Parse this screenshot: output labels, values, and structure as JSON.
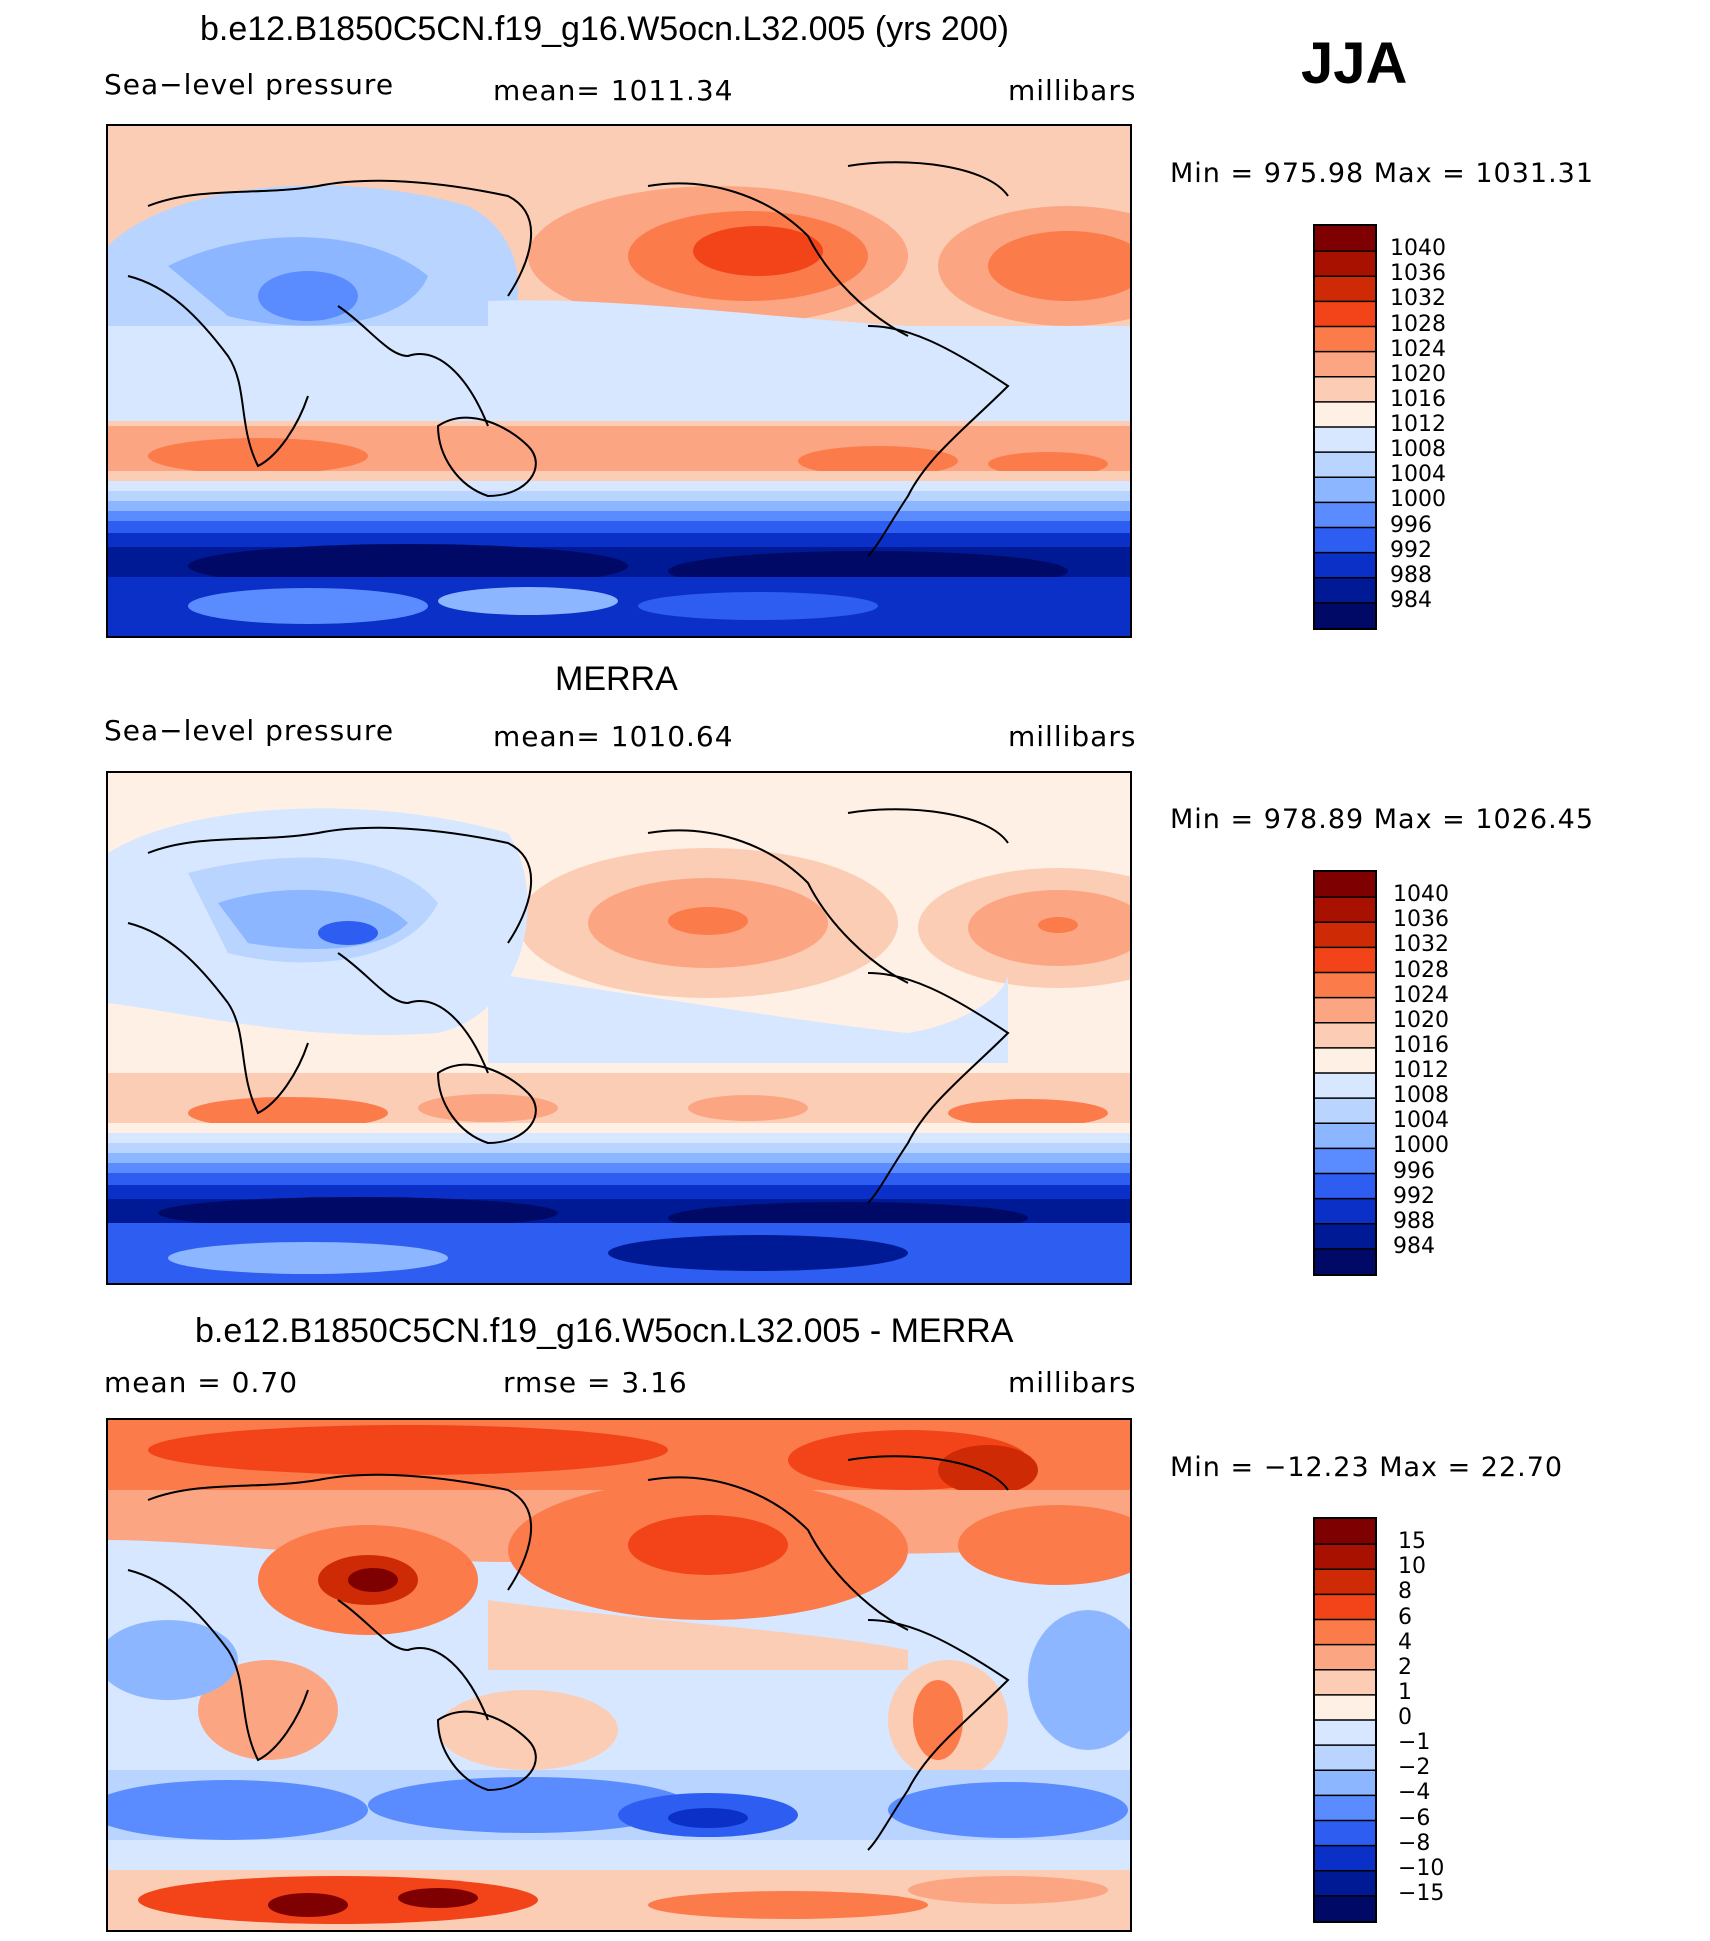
{
  "season": "JJA",
  "unit": "millibars",
  "panels": [
    {
      "title": "b.e12.B1850C5CN.f19_g16.W5ocn.L32.005 (yrs 200)",
      "variable": "Sea−level pressure",
      "stat_text": "mean=  1011.34",
      "unit": "millibars",
      "minmax": "Min  =  975.98  Max  =  1031.31"
    },
    {
      "title": "MERRA",
      "variable": "Sea−level pressure",
      "stat_text": "mean=  1010.64",
      "unit": "millibars",
      "minmax": "Min  =  978.89  Max  =  1026.45"
    },
    {
      "title": "b.e12.B1850C5CN.f19_g16.W5ocn.L32.005 - MERRA",
      "mean_text": "mean  =     0.70",
      "rmse_text": "rmse  =     3.16",
      "unit": "millibars",
      "minmax": "Min  =  −12.23  Max  =    22.70"
    }
  ],
  "colorbars": {
    "slp_levels": [
      "1040",
      "1036",
      "1032",
      "1028",
      "1024",
      "1020",
      "1016",
      "1012",
      "1008",
      "1004",
      "1000",
      "996",
      "992",
      "988",
      "984"
    ],
    "slp_colors": [
      "#7f0000",
      "#a81000",
      "#cf2a06",
      "#f24418",
      "#fb7b4a",
      "#fca583",
      "#fcccb4",
      "#fff0e6",
      "#d6e7ff",
      "#b8d4ff",
      "#8cb6ff",
      "#5a8cff",
      "#2e5df2",
      "#0b30c8",
      "#001a96",
      "#000a66"
    ],
    "diff_levels": [
      "15",
      "10",
      "8",
      "6",
      "4",
      "2",
      "1",
      "0",
      "−1",
      "−2",
      "−4",
      "−6",
      "−8",
      "−10",
      "−15"
    ],
    "diff_colors": [
      "#7f0000",
      "#a81000",
      "#cf2a06",
      "#f24418",
      "#fb7b4a",
      "#fca583",
      "#fcccb4",
      "#fff0e6",
      "#d6e7ff",
      "#b8d4ff",
      "#8cb6ff",
      "#5a8cff",
      "#2e5df2",
      "#0b30c8",
      "#001a96",
      "#000a66"
    ]
  }
}
